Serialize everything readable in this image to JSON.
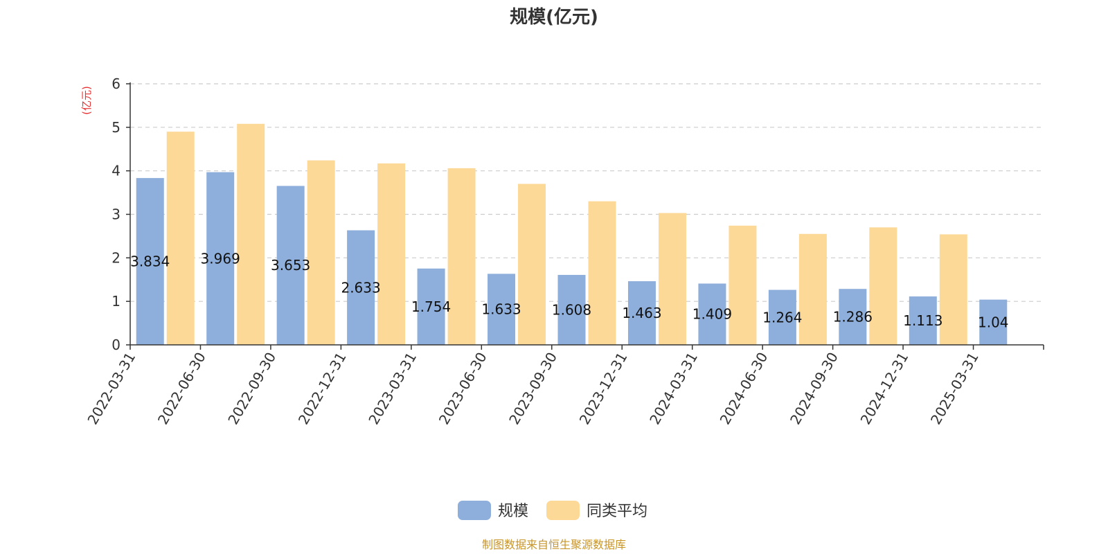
{
  "chart_data": {
    "type": "bar",
    "title": "规模(亿元)",
    "ylabel": "(亿元)",
    "xlabel": "",
    "ylim": [
      0,
      6
    ],
    "yticks": [
      0,
      1,
      2,
      3,
      4,
      5,
      6
    ],
    "grid": true,
    "categories": [
      "2022-03-31",
      "2022-06-30",
      "2022-09-30",
      "2022-12-31",
      "2023-03-31",
      "2023-06-30",
      "2023-09-30",
      "2023-12-31",
      "2024-03-31",
      "2024-06-30",
      "2024-09-30",
      "2024-12-31",
      "2025-03-31"
    ],
    "series": [
      {
        "name": "规模",
        "color": "#8eaedb",
        "values": [
          3.834,
          3.969,
          3.653,
          2.633,
          1.754,
          1.633,
          1.608,
          1.463,
          1.409,
          1.264,
          1.286,
          1.113,
          1.04
        ],
        "labels": [
          "3.834",
          "3.969",
          "3.653",
          "2.633",
          "1.754",
          "1.633",
          "1.608",
          "1.463",
          "1.409",
          "1.264",
          "1.286",
          "1.113",
          "1.04"
        ]
      },
      {
        "name": "同类平均",
        "color": "#fdd998",
        "values": [
          4.9,
          5.08,
          4.24,
          4.17,
          4.06,
          3.7,
          3.3,
          3.03,
          2.74,
          2.55,
          2.7,
          2.54,
          null
        ]
      }
    ],
    "legend_position": "bottom-center",
    "source_note": "制图数据来自恒生聚源数据库",
    "colors": {
      "title": "#333333",
      "unit": "#e83030",
      "source": "#c8952a",
      "grid": "#cccccc",
      "axis": "#333333"
    }
  }
}
